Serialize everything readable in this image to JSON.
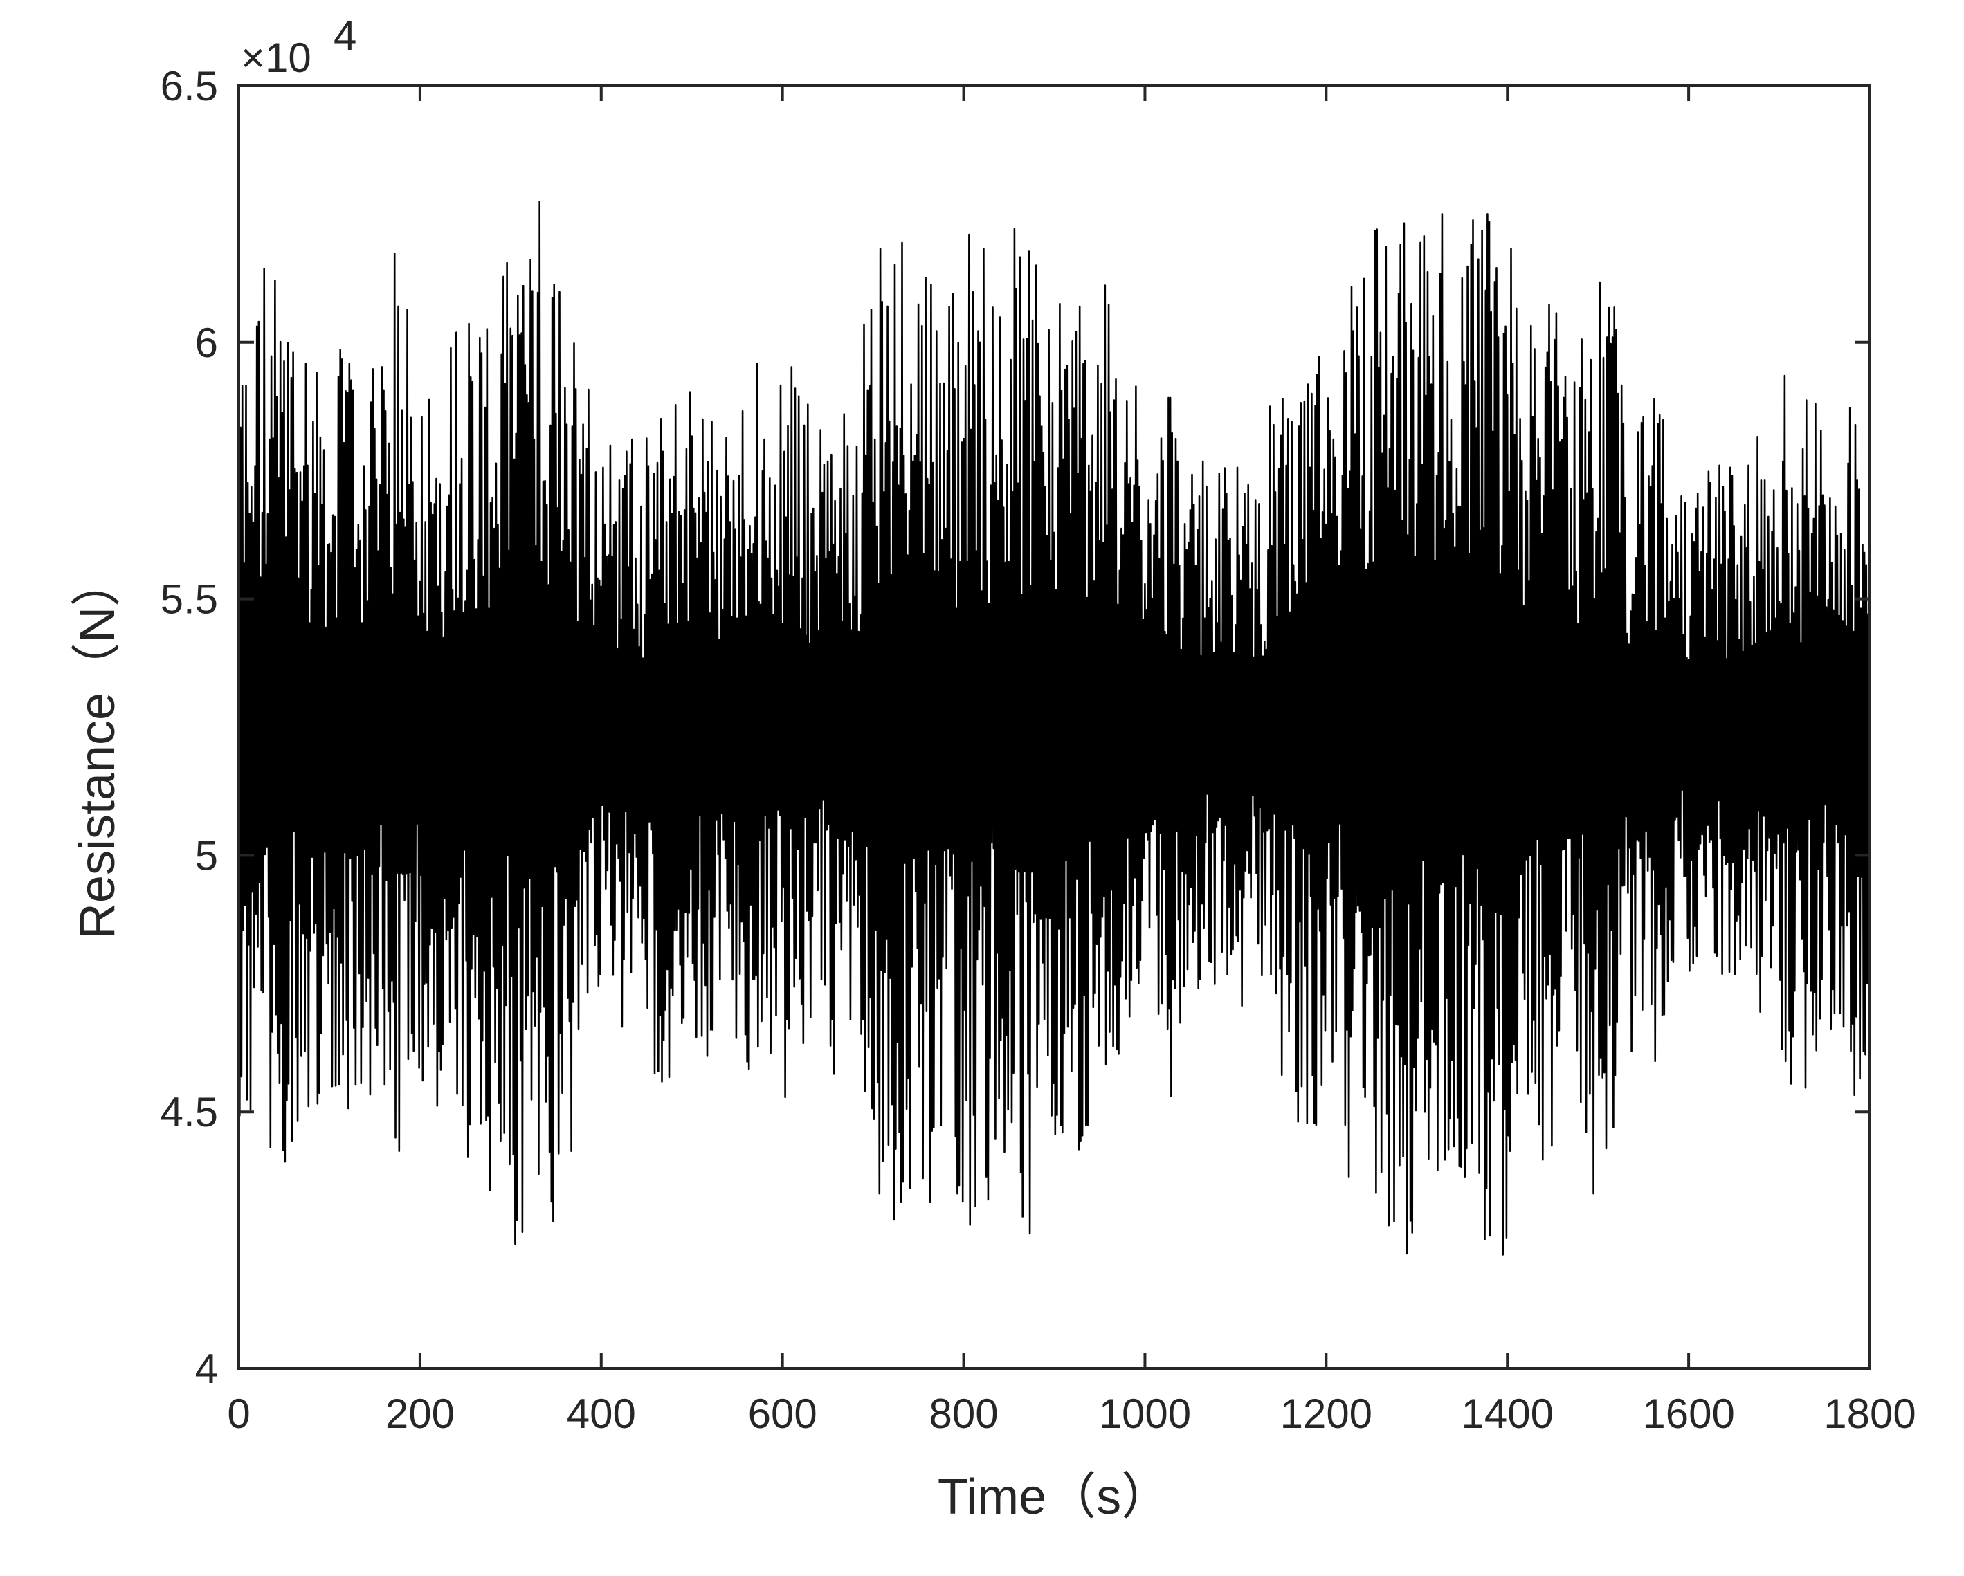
{
  "chart_data": {
    "type": "line",
    "title": "",
    "xlabel": "Time（s）",
    "ylabel": "Resistance（N）",
    "y_exponent_base": "×10",
    "y_exponent_power": "4",
    "xlim": [
      0,
      1800
    ],
    "ylim": [
      4,
      6.5
    ],
    "y_scale_factor": 10000,
    "x_ticks": [
      0,
      200,
      400,
      600,
      800,
      1000,
      1200,
      1400,
      1600,
      1800
    ],
    "x_tick_labels": [
      "0",
      "200",
      "400",
      "600",
      "800",
      "1000",
      "1200",
      "1400",
      "1600",
      "1800"
    ],
    "y_ticks": [
      4,
      4.5,
      5,
      5.5,
      6,
      6.5
    ],
    "y_tick_labels": [
      "4",
      "4.5",
      "5",
      "5.5",
      "6",
      "6.5"
    ],
    "grid": false,
    "line_color": "#000000",
    "signal_summary": {
      "mean": 5.25,
      "min": 4.2,
      "max": 6.3,
      "sample_interval_s": 1,
      "duration_s": 1800
    },
    "series": [
      {
        "x_start": 0,
        "x_step": 1,
        "values": []
      }
    ]
  }
}
